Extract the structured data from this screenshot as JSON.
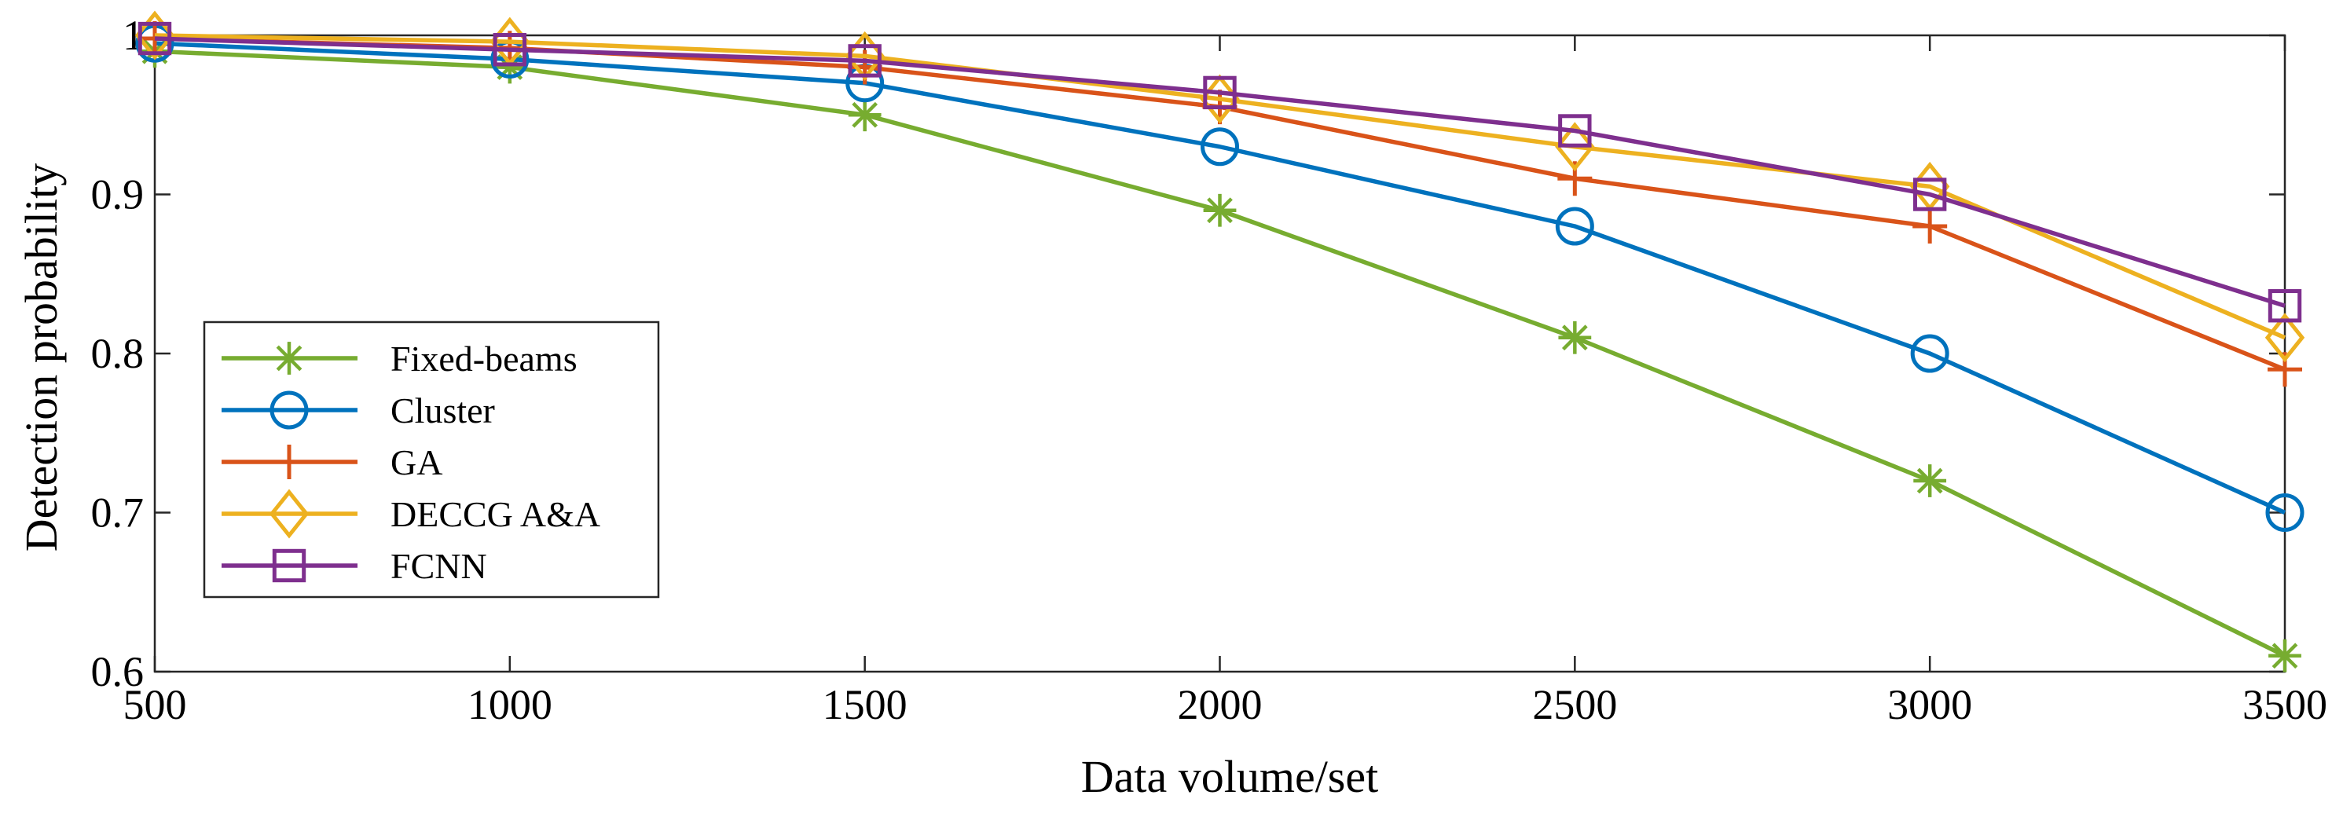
{
  "chart_data": {
    "type": "line",
    "title": "",
    "xlabel": "Data volume/set",
    "ylabel": "Detection probability",
    "xlim": [
      500,
      3500
    ],
    "ylim": [
      0.6,
      1.0
    ],
    "xticks": [
      500,
      1000,
      1500,
      2000,
      2500,
      3000,
      3500
    ],
    "yticks": [
      0.6,
      0.7,
      0.8,
      0.9,
      1.0
    ],
    "ytick_labels": [
      "0.6",
      "0.7",
      "0.8",
      "0.9",
      "1"
    ],
    "grid": false,
    "legend_position": "lower-left",
    "x": [
      500,
      1000,
      1500,
      2000,
      2500,
      3000,
      3500
    ],
    "series": [
      {
        "name": "Fixed-beams",
        "color": "#77AC30",
        "marker": "asterisk",
        "values": [
          0.99,
          0.98,
          0.95,
          0.89,
          0.81,
          0.72,
          0.61
        ]
      },
      {
        "name": "Cluster",
        "color": "#0072BD",
        "marker": "circle",
        "values": [
          0.995,
          0.985,
          0.97,
          0.93,
          0.88,
          0.8,
          0.7
        ]
      },
      {
        "name": "GA",
        "color": "#D95319",
        "marker": "plus",
        "values": [
          0.998,
          0.992,
          0.98,
          0.955,
          0.91,
          0.88,
          0.79
        ]
      },
      {
        "name": "DECCG A&A",
        "color": "#EDB120",
        "marker": "diamond",
        "values": [
          1.0,
          0.996,
          0.987,
          0.96,
          0.93,
          0.905,
          0.81
        ]
      },
      {
        "name": "FCNN",
        "color": "#7E2F8E",
        "marker": "square",
        "values": [
          0.998,
          0.991,
          0.984,
          0.964,
          0.94,
          0.9,
          0.83
        ]
      }
    ]
  }
}
